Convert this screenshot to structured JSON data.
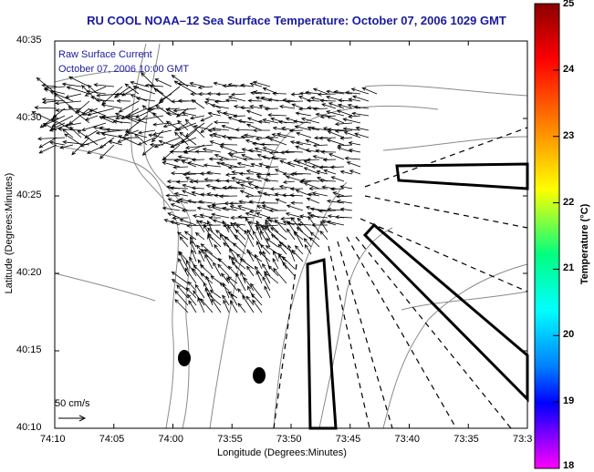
{
  "title": "RU COOL  NOAA–12  Sea Surface Temperature:  October 07, 2006 1029 GMT",
  "legend": {
    "line1": "Raw Surface Current",
    "line2": "October 07, 2006 10:00 GMT",
    "scale_label": "50 cm/s"
  },
  "axes": {
    "xlabel": "Longitude (Degrees:Minutes)",
    "ylabel": "Latitude (Degrees:Minutes)",
    "x_ticks": [
      "74:10",
      "74:05",
      "74:00",
      "73:55",
      "73:50",
      "73:45",
      "73:40",
      "73:35",
      "73:3"
    ],
    "y_ticks": [
      "40:35",
      "40:30",
      "40:25",
      "40:20",
      "40:15",
      "40:10"
    ]
  },
  "colorbar": {
    "title": "Temperature (°C)",
    "ticks": [
      "25",
      "24",
      "23",
      "22",
      "21",
      "20",
      "19",
      "18"
    ],
    "colors": [
      "#8b0000",
      "#ff0000",
      "#ff8000",
      "#ffff00",
      "#00ff80",
      "#00ffff",
      "#0080ff",
      "#0000ff",
      "#8000ff",
      "#ff00ff"
    ]
  },
  "chart_data": {
    "type": "map",
    "title": "RU COOL  NOAA–12  Sea Surface Temperature:  October 07, 2006 1029 GMT",
    "xlabel": "Longitude (Degrees:Minutes)",
    "ylabel": "Latitude (Degrees:Minutes)",
    "xlim_minutes_west": [
      4450,
      4410
    ],
    "ylim_minutes_north": [
      2410,
      2435
    ],
    "colorbar_range_C": [
      18,
      25
    ]
  }
}
